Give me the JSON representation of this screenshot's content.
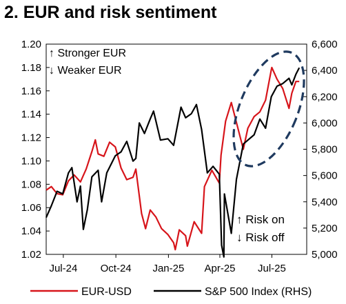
{
  "title": "2. EUR and risk sentiment",
  "chart_data": {
    "type": "line",
    "x_tick_labels": [
      "Jul-24",
      "Oct-24",
      "Jan-25",
      "Apr-25",
      "Jul-25"
    ],
    "x_range": [
      "2024-06-01",
      "2025-08-31"
    ],
    "y_left": {
      "ylim": [
        1.02,
        1.2
      ],
      "tick_labels": [
        "1.02",
        "1.04",
        "1.06",
        "1.08",
        "1.10",
        "1.12",
        "1.14",
        "1.16",
        "1.18",
        "1.20"
      ]
    },
    "y_right": {
      "ylim": [
        5000,
        6600
      ],
      "tick_labels": [
        "5,000",
        "5,200",
        "5,400",
        "5,600",
        "5,800",
        "6,000",
        "6,200",
        "6,400",
        "6,600"
      ]
    },
    "grid": false,
    "legend_position": "bottom",
    "annotations": {
      "top_left": [
        "↑ Stronger EUR",
        "↓ Weaker EUR"
      ],
      "bottom_right": [
        "↑ Risk on",
        "↓ Risk off"
      ]
    },
    "highlight": "dashed ellipse around the latest EUR-USD and S&P 500 readings",
    "series": [
      {
        "name": "EUR-USD",
        "axis": "left",
        "color": "#d7141a",
        "points": [
          [
            "2024-06-01",
            1.075
          ],
          [
            "2024-06-10",
            1.078
          ],
          [
            "2024-06-20",
            1.072
          ],
          [
            "2024-06-30",
            1.071
          ],
          [
            "2024-07-10",
            1.083
          ],
          [
            "2024-07-20",
            1.088
          ],
          [
            "2024-07-31",
            1.082
          ],
          [
            "2024-08-10",
            1.093
          ],
          [
            "2024-08-20",
            1.108
          ],
          [
            "2024-08-26",
            1.118
          ],
          [
            "2024-08-31",
            1.106
          ],
          [
            "2024-09-10",
            1.104
          ],
          [
            "2024-09-20",
            1.116
          ],
          [
            "2024-09-30",
            1.112
          ],
          [
            "2024-10-10",
            1.094
          ],
          [
            "2024-10-20",
            1.084
          ],
          [
            "2024-10-31",
            1.086
          ],
          [
            "2024-11-05",
            1.093
          ],
          [
            "2024-11-15",
            1.055
          ],
          [
            "2024-11-22",
            1.042
          ],
          [
            "2024-11-30",
            1.058
          ],
          [
            "2024-12-10",
            1.052
          ],
          [
            "2024-12-20",
            1.042
          ],
          [
            "2024-12-31",
            1.037
          ],
          [
            "2025-01-10",
            1.03
          ],
          [
            "2025-01-13",
            1.024
          ],
          [
            "2025-01-20",
            1.041
          ],
          [
            "2025-01-31",
            1.036
          ],
          [
            "2025-02-03",
            1.027
          ],
          [
            "2025-02-15",
            1.048
          ],
          [
            "2025-02-28",
            1.038
          ],
          [
            "2025-03-05",
            1.078
          ],
          [
            "2025-03-18",
            1.092
          ],
          [
            "2025-03-31",
            1.081
          ],
          [
            "2025-04-03",
            1.105
          ],
          [
            "2025-04-11",
            1.134
          ],
          [
            "2025-04-21",
            1.15
          ],
          [
            "2025-04-30",
            1.133
          ],
          [
            "2025-05-12",
            1.11
          ],
          [
            "2025-05-20",
            1.128
          ],
          [
            "2025-05-31",
            1.138
          ],
          [
            "2025-06-10",
            1.142
          ],
          [
            "2025-06-20",
            1.152
          ],
          [
            "2025-06-30",
            1.178
          ],
          [
            "2025-07-01",
            1.18
          ],
          [
            "2025-07-10",
            1.17
          ],
          [
            "2025-07-20",
            1.162
          ],
          [
            "2025-07-31",
            1.145
          ],
          [
            "2025-08-05",
            1.158
          ],
          [
            "2025-08-12",
            1.168
          ],
          [
            "2025-08-18",
            1.168
          ]
        ]
      },
      {
        "name": "S&P 500 Index (RHS)",
        "axis": "right",
        "color": "#000000",
        "points": [
          [
            "2024-06-01",
            5280
          ],
          [
            "2024-06-10",
            5370
          ],
          [
            "2024-06-20",
            5480
          ],
          [
            "2024-06-30",
            5460
          ],
          [
            "2024-07-10",
            5620
          ],
          [
            "2024-07-16",
            5660
          ],
          [
            "2024-07-25",
            5400
          ],
          [
            "2024-07-31",
            5520
          ],
          [
            "2024-08-05",
            5190
          ],
          [
            "2024-08-12",
            5340
          ],
          [
            "2024-08-20",
            5590
          ],
          [
            "2024-08-31",
            5640
          ],
          [
            "2024-09-06",
            5400
          ],
          [
            "2024-09-15",
            5620
          ],
          [
            "2024-09-30",
            5750
          ],
          [
            "2024-10-10",
            5780
          ],
          [
            "2024-10-20",
            5860
          ],
          [
            "2024-10-31",
            5710
          ],
          [
            "2024-11-05",
            5730
          ],
          [
            "2024-11-11",
            6000
          ],
          [
            "2024-11-20",
            5920
          ],
          [
            "2024-11-30",
            6030
          ],
          [
            "2024-12-06",
            6090
          ],
          [
            "2024-12-18",
            5870
          ],
          [
            "2024-12-31",
            5880
          ],
          [
            "2025-01-10",
            5830
          ],
          [
            "2025-01-23",
            6120
          ],
          [
            "2025-01-31",
            6040
          ],
          [
            "2025-02-10",
            6070
          ],
          [
            "2025-02-19",
            6140
          ],
          [
            "2025-02-28",
            5950
          ],
          [
            "2025-03-10",
            5620
          ],
          [
            "2025-03-20",
            5670
          ],
          [
            "2025-03-31",
            5610
          ],
          [
            "2025-04-04",
            5070
          ],
          [
            "2025-04-08",
            4980
          ],
          [
            "2025-04-09",
            5460
          ],
          [
            "2025-04-21",
            5160
          ],
          [
            "2025-04-30",
            5570
          ],
          [
            "2025-05-12",
            5840
          ],
          [
            "2025-05-31",
            5910
          ],
          [
            "2025-06-10",
            6030
          ],
          [
            "2025-06-20",
            5960
          ],
          [
            "2025-06-30",
            6200
          ],
          [
            "2025-07-10",
            6280
          ],
          [
            "2025-07-20",
            6300
          ],
          [
            "2025-07-31",
            6340
          ],
          [
            "2025-08-05",
            6290
          ],
          [
            "2025-08-12",
            6370
          ],
          [
            "2025-08-18",
            6420
          ]
        ]
      }
    ]
  },
  "colors": {
    "eur_usd": "#d7141a",
    "sp500": "#000000",
    "highlight_ellipse": "#1f3a5f"
  }
}
